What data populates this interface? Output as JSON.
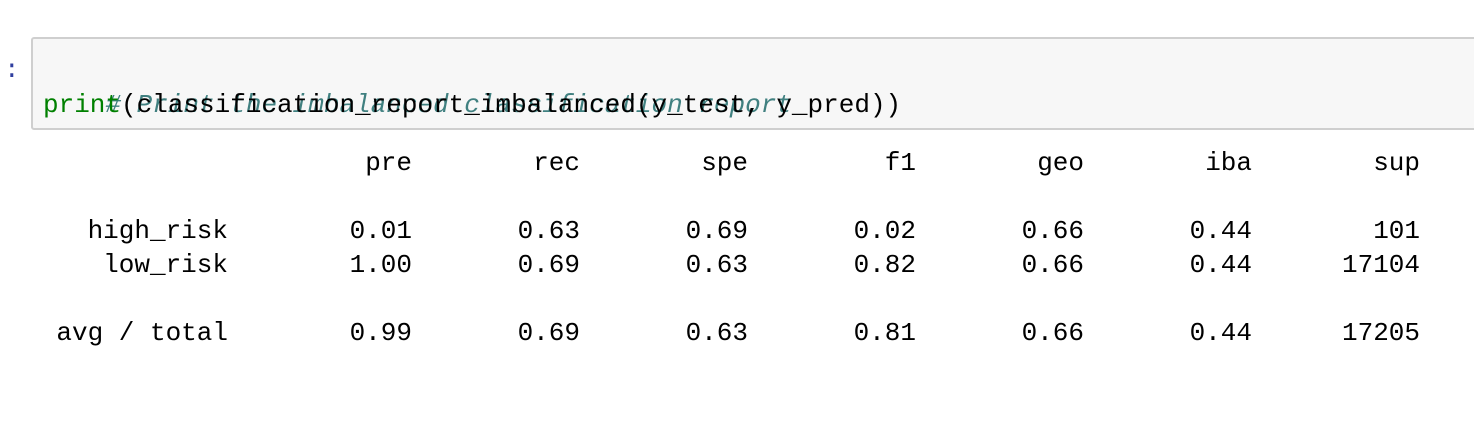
{
  "cell": {
    "prompt": ":",
    "comment": "# Print the imbalanced classification report",
    "code_func": "print",
    "code_rest": "(classification_report_imbalanced(y_test, y_pred))"
  },
  "report": {
    "headers": [
      "pre",
      "rec",
      "spe",
      "f1",
      "geo",
      "iba",
      "sup"
    ],
    "rows": [
      {
        "label": "high_risk",
        "values": [
          "0.01",
          "0.63",
          "0.69",
          "0.02",
          "0.66",
          "0.44",
          "101"
        ]
      },
      {
        "label": "low_risk",
        "values": [
          "1.00",
          "0.69",
          "0.63",
          "0.82",
          "0.66",
          "0.44",
          "17104"
        ]
      },
      {
        "label": "avg / total",
        "values": [
          "0.99",
          "0.69",
          "0.63",
          "0.81",
          "0.66",
          "0.44",
          "17205"
        ]
      }
    ]
  },
  "colors": {
    "comment": "#408080",
    "builtin": "#008000",
    "cell_background": "#f7f7f7",
    "cell_border": "#cfcfcf"
  }
}
